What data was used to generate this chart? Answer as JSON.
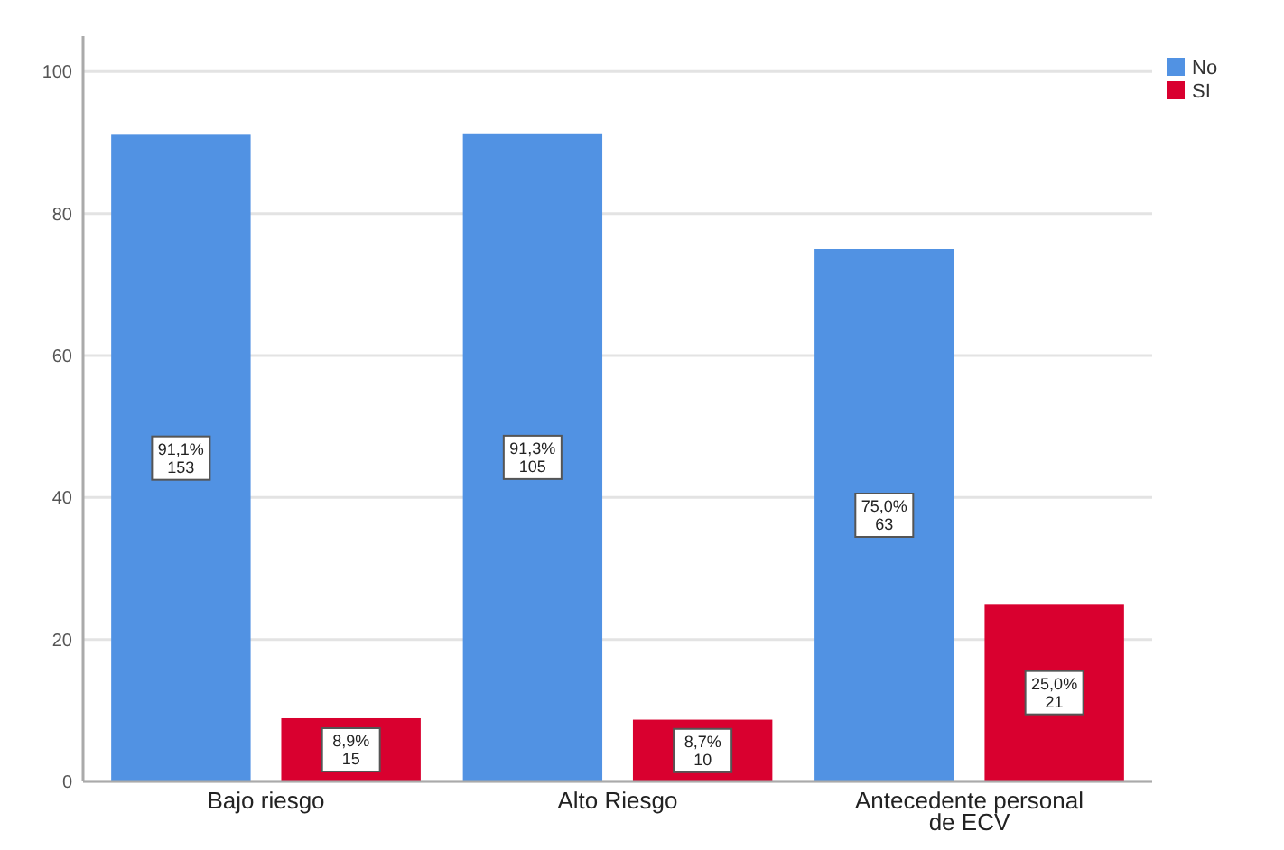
{
  "chart_data": {
    "type": "bar",
    "categories": [
      "Bajo riesgo",
      "Alto Riesgo",
      "Antecedente personal de ECV"
    ],
    "series": [
      {
        "name": "No",
        "color": "#5192e3",
        "values": [
          91.1,
          91.3,
          75.0
        ],
        "value_labels": [
          "91,1%\n153",
          "91,3%\n105",
          "75,0%\n63"
        ]
      },
      {
        "name": "SI",
        "color": "#d9002f",
        "values": [
          8.9,
          8.7,
          25.0
        ],
        "value_labels": [
          "8,9%\n15",
          "8,7%\n10",
          "25,0%\n21"
        ]
      }
    ],
    "ylim": [
      0,
      105
    ],
    "yticks": [
      0,
      20,
      40,
      60,
      80,
      100
    ],
    "grid": "y",
    "legend": "top right"
  }
}
